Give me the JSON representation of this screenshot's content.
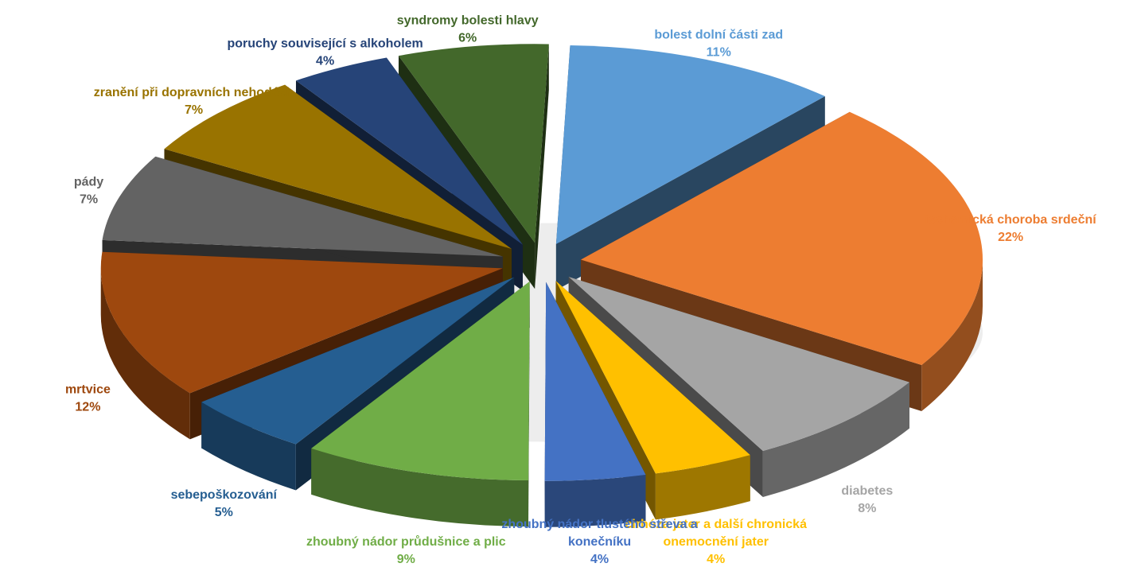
{
  "chart_data": {
    "type": "pie",
    "variant": "3d-exploded",
    "legend": "none",
    "start_angle_deg": -88,
    "direction": "clockwise",
    "slices": [
      {
        "label": "bolest dolní části zad",
        "value": 11,
        "value_label": "11%",
        "color": "#5b9bd5"
      },
      {
        "label": "ischemická choroba srdeční",
        "value": 22,
        "value_label": "22%",
        "color": "#ed7d31"
      },
      {
        "label": "diabetes",
        "value": 8,
        "value_label": "8%",
        "color": "#a5a5a5"
      },
      {
        "label": "cirhóza jater a další chronická onemocnění jater",
        "value": 4,
        "value_label": "4%",
        "color": "#ffc000"
      },
      {
        "label": "zhoubný nádor tlustého střeva a konečníku",
        "value": 4,
        "value_label": "4%",
        "color": "#4472c4"
      },
      {
        "label": "zhoubný nádor průdušnice a plic",
        "value": 9,
        "value_label": "9%",
        "color": "#70ad47"
      },
      {
        "label": "sebepoškozování",
        "value": 5,
        "value_label": "5%",
        "color": "#255e91"
      },
      {
        "label": "mrtvice",
        "value": 12,
        "value_label": "12%",
        "color": "#9e480e"
      },
      {
        "label": "pády",
        "value": 7,
        "value_label": "7%",
        "color": "#636363"
      },
      {
        "label": "zranění při dopravních nehodách",
        "value": 7,
        "value_label": "7%",
        "color": "#997300"
      },
      {
        "label": "poruchy související s alkoholem",
        "value": 4,
        "value_label": "4%",
        "color": "#264478"
      },
      {
        "label": "syndromy bolesti hlavy",
        "value": 6,
        "value_label": "6%",
        "color": "#43682b"
      }
    ]
  }
}
